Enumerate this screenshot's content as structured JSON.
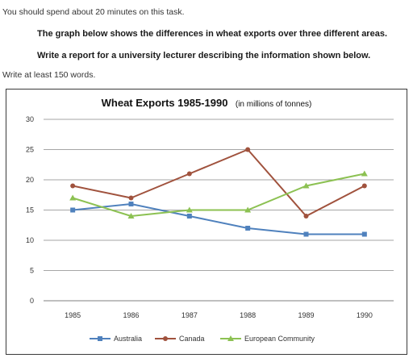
{
  "task": {
    "line1": "You should spend about 20 minutes on this task.",
    "line2": "The graph below shows the differences in wheat exports over three different areas.",
    "line3": "Write a report for a university lecturer describing the information shown below.",
    "line4": "Write at least 150 words."
  },
  "chart_data": {
    "type": "line",
    "title": "Wheat Exports 1985-1990",
    "subtitle": "(in millions of tonnes)",
    "xlabel": "",
    "ylabel": "",
    "x": [
      "1985",
      "1986",
      "1987",
      "1988",
      "1989",
      "1990"
    ],
    "ylim": [
      0,
      30
    ],
    "yticks": [
      0,
      5,
      10,
      15,
      20,
      25,
      30
    ],
    "grid": true,
    "legend": "bottom",
    "series": [
      {
        "name": "Australia",
        "values": [
          15,
          16,
          14,
          12,
          11,
          11
        ],
        "color": "#4f81bd",
        "marker": "square"
      },
      {
        "name": "Canada",
        "values": [
          19,
          17,
          21,
          25,
          14,
          19
        ],
        "color": "#a0523d",
        "marker": "circle"
      },
      {
        "name": "European Community",
        "values": [
          17,
          14,
          15,
          15,
          19,
          21
        ],
        "color": "#8cc152",
        "marker": "triangle"
      }
    ]
  }
}
